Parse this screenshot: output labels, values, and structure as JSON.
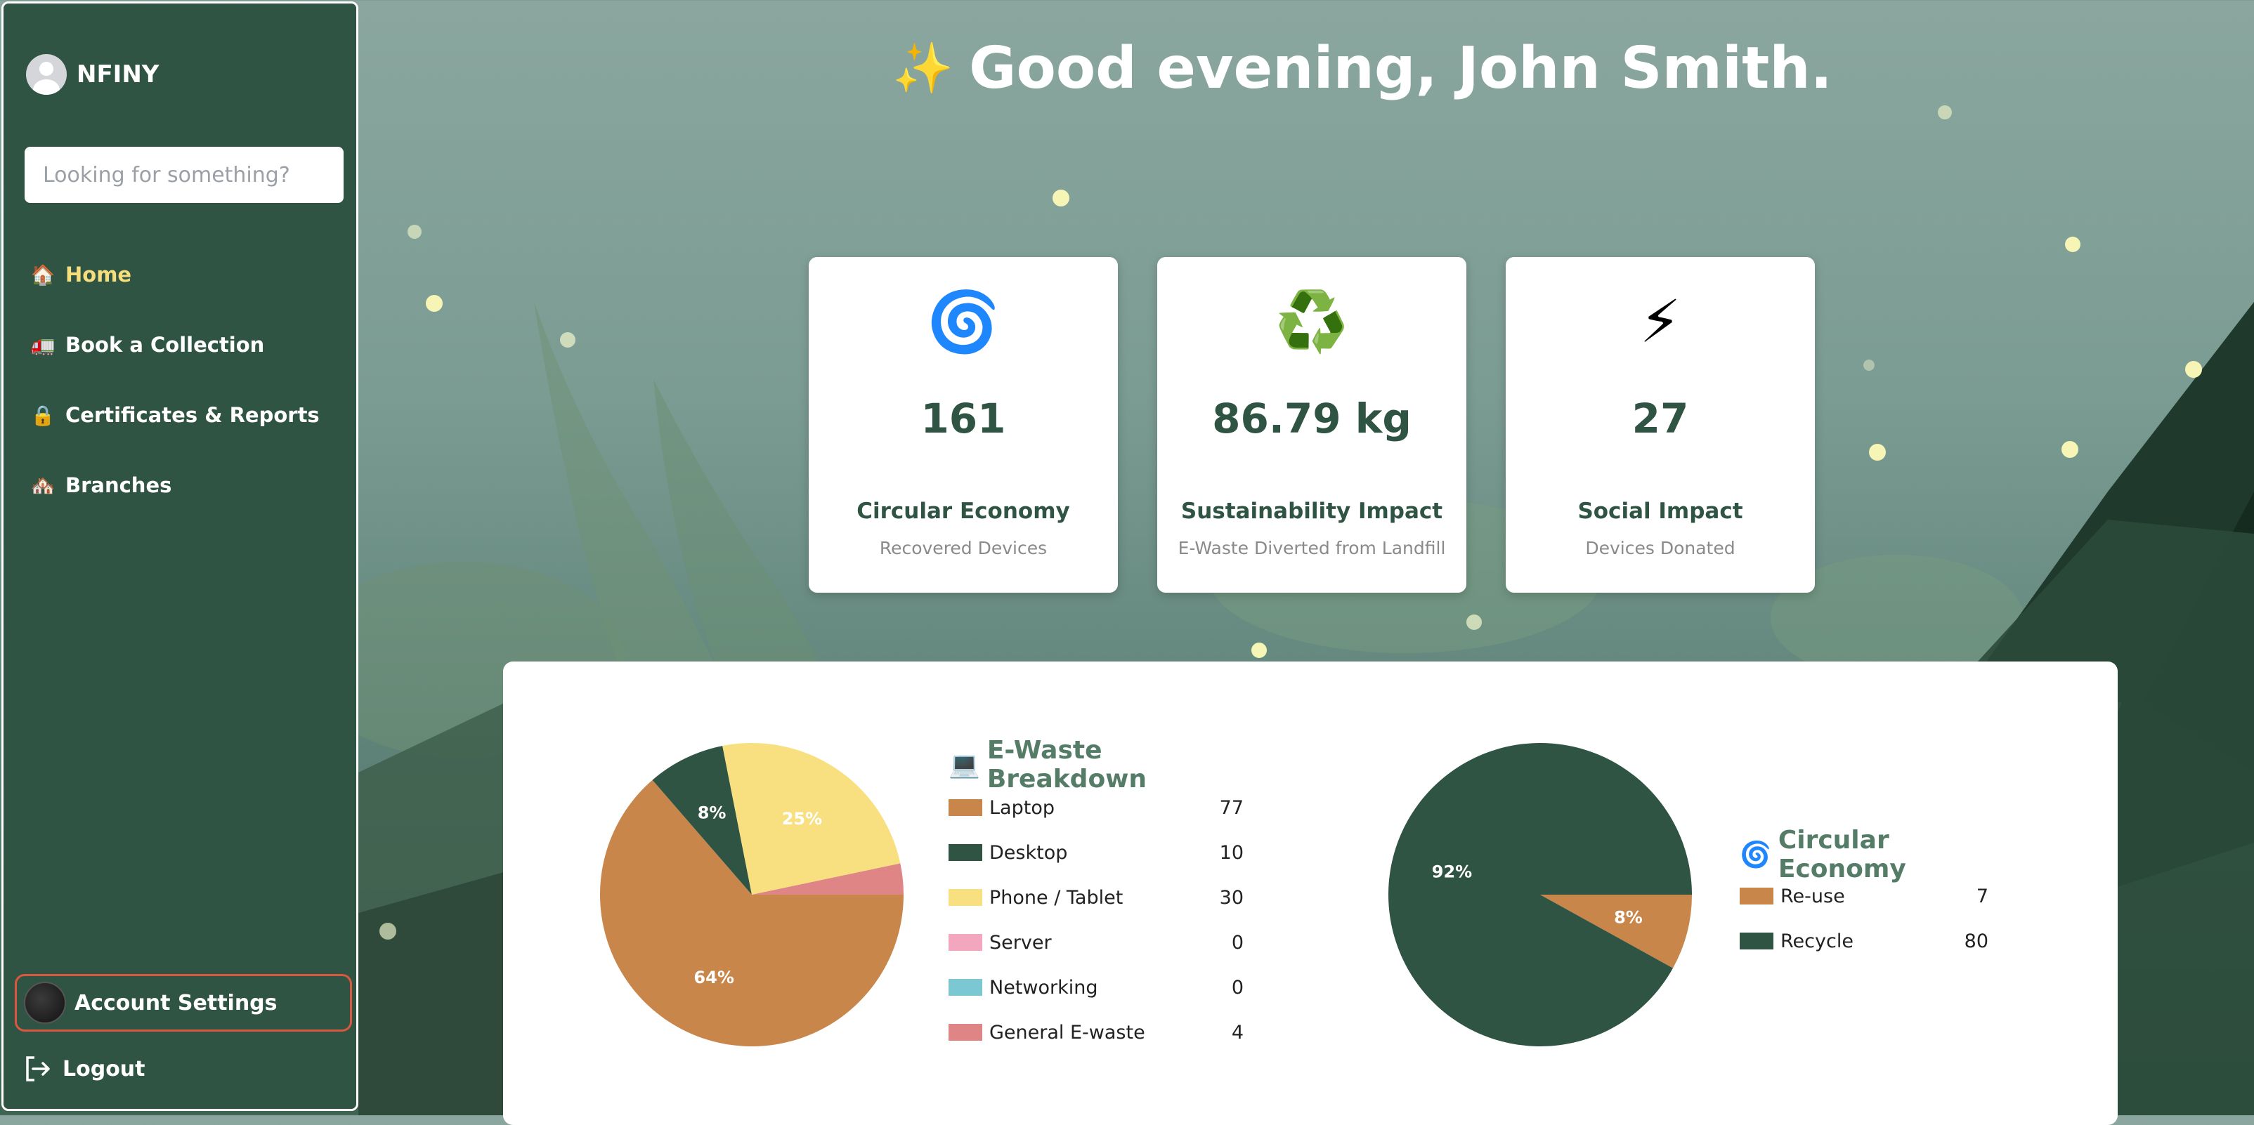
{
  "brand": {
    "name": "NFINY"
  },
  "search": {
    "placeholder": "Looking for something?"
  },
  "nav": [
    {
      "icon": "🏠",
      "label": "Home",
      "active": true
    },
    {
      "icon": "🚛",
      "label": "Book a Collection"
    },
    {
      "icon": "🔒",
      "label": "Certificates & Reports"
    },
    {
      "icon": "🏘️",
      "label": "Branches"
    }
  ],
  "account": {
    "label": "Account Settings"
  },
  "logout": {
    "label": "Logout"
  },
  "greeting": {
    "icon": "✨",
    "text": "Good evening, John Smith."
  },
  "cards": [
    {
      "icon": "🌀",
      "value": "161",
      "title": "Circular Economy",
      "subtitle": "Recovered Devices"
    },
    {
      "icon": "♻️",
      "value": "86.79 kg",
      "title": "Sustainability Impact",
      "subtitle": "E-Waste Diverted from Landfill"
    },
    {
      "icon": "⚡",
      "value": "27",
      "title": "Social Impact",
      "subtitle": "Devices Donated"
    }
  ],
  "chart_data": [
    {
      "type": "pie",
      "title": "E-Waste Breakdown",
      "title_icon": "💻",
      "categories": [
        "Laptop",
        "Desktop",
        "Phone / Tablet",
        "Server",
        "Networking",
        "General E-waste"
      ],
      "values": [
        77,
        10,
        30,
        0,
        0,
        4
      ],
      "colors": [
        "#c8864b",
        "#2f5443",
        "#f8df7f",
        "#f2a7bf",
        "#7cc8d2",
        "#df8585"
      ],
      "slice_labels": [
        "64%",
        "8%",
        "25%",
        "",
        "",
        ""
      ]
    },
    {
      "type": "pie",
      "title": "Circular Economy",
      "title_icon": "🌀",
      "categories": [
        "Re-use",
        "Recycle"
      ],
      "values": [
        7,
        80
      ],
      "colors": [
        "#c8864b",
        "#2f5443"
      ],
      "slice_labels": [
        "8%",
        "92%"
      ]
    }
  ]
}
